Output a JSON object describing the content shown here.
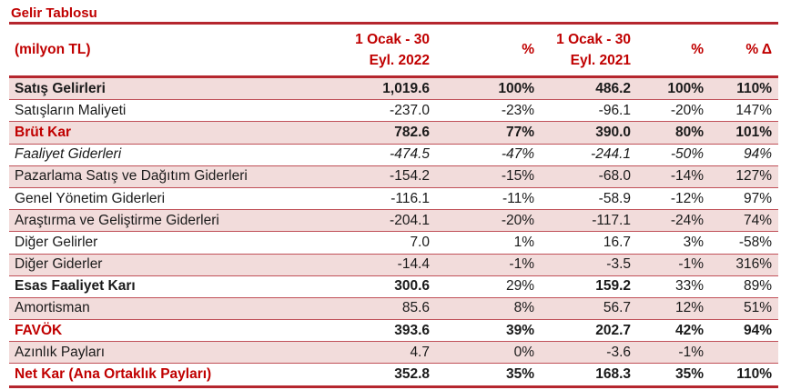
{
  "title": "Gelir Tablosu",
  "headers": {
    "label": "(milyon TL)",
    "p2022_line1": "1 Ocak - 30",
    "p2022_line2": "Eyl. 2022",
    "pct1": "%",
    "p2021_line1": "1 Ocak - 30",
    "p2021_line2": "Eyl. 2021",
    "pct2": "%",
    "delta": "% Δ"
  },
  "rows": [
    {
      "label": "Satış Gelirleri",
      "v2022": "1,019.6",
      "p2022": "100%",
      "v2021": "486.2",
      "p2021": "100%",
      "delta": "110%"
    },
    {
      "label": "Satışların Maliyeti",
      "v2022": "-237.0",
      "p2022": "-23%",
      "v2021": "-96.1",
      "p2021": "-20%",
      "delta": "147%"
    },
    {
      "label": "Brüt Kar",
      "v2022": "782.6",
      "p2022": "77%",
      "v2021": "390.0",
      "p2021": "80%",
      "delta": "101%"
    },
    {
      "label": "Faaliyet Giderleri",
      "v2022": "-474.5",
      "p2022": "-47%",
      "v2021": "-244.1",
      "p2021": "-50%",
      "delta": "94%"
    },
    {
      "label": "Pazarlama Satış ve Dağıtım Giderleri",
      "v2022": "-154.2",
      "p2022": "-15%",
      "v2021": "-68.0",
      "p2021": "-14%",
      "delta": "127%"
    },
    {
      "label": "Genel Yönetim Giderleri",
      "v2022": "-116.1",
      "p2022": "-11%",
      "v2021": "-58.9",
      "p2021": "-12%",
      "delta": "97%"
    },
    {
      "label": "Araştırma ve Geliştirme Giderleri",
      "v2022": "-204.1",
      "p2022": "-20%",
      "v2021": "-117.1",
      "p2021": "-24%",
      "delta": "74%"
    },
    {
      "label": "Diğer Gelirler",
      "v2022": "7.0",
      "p2022": "1%",
      "v2021": "16.7",
      "p2021": "3%",
      "delta": "-58%"
    },
    {
      "label": "Diğer Giderler",
      "v2022": "-14.4",
      "p2022": "-1%",
      "v2021": "-3.5",
      "p2021": "-1%",
      "delta": "316%"
    },
    {
      "label": "Esas Faaliyet Karı",
      "v2022": "300.6",
      "p2022": "29%",
      "v2021": "159.2",
      "p2021": "33%",
      "delta": "89%"
    },
    {
      "label": "Amortisman",
      "v2022": "85.6",
      "p2022": "8%",
      "v2021": "56.7",
      "p2021": "12%",
      "delta": "51%"
    },
    {
      "label": "FAVÖK",
      "v2022": "393.6",
      "p2022": "39%",
      "v2021": "202.7",
      "p2021": "42%",
      "delta": "94%"
    },
    {
      "label": "Azınlık Payları",
      "v2022": "4.7",
      "p2022": "0%",
      "v2021": "-3.6",
      "p2021": "-1%",
      "delta": ""
    },
    {
      "label": "Net Kar (Ana Ortaklık Payları)",
      "v2022": "352.8",
      "p2022": "35%",
      "v2021": "168.3",
      "p2021": "35%",
      "delta": "110%"
    }
  ]
}
